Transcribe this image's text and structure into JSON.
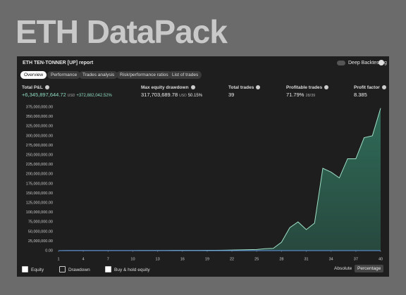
{
  "page_title": "ETH DataPack",
  "report": {
    "title": "ETH TEN-TONNER [UP] report",
    "toggle": "Deep Backtesting"
  },
  "tabs": [
    "Overview",
    "Performance",
    "Trades analysis",
    "Risk/performance ratios",
    "List of trades"
  ],
  "stats": [
    {
      "label": "Total P&L",
      "value": "+6,345,897,644.72",
      "unit": "USD",
      "extra": "+372,882,042.52%"
    },
    {
      "label": "Max equity drawdown",
      "value": "317,703,689.78",
      "unit": "USD",
      "extra": "50.15%"
    },
    {
      "label": "Total trades",
      "value": "39"
    },
    {
      "label": "Profitable trades",
      "value": "71.79%",
      "extra": "28/39"
    },
    {
      "label": "Profit factor",
      "value": "8.385"
    }
  ],
  "legend": {
    "equity": "Equity",
    "drawdown": "Drawdown",
    "buy_hold": "Buy & hold equity",
    "absolute": "Absolute",
    "percentage": "Percentage"
  },
  "chart_data": {
    "type": "area",
    "x": [
      1,
      2,
      3,
      4,
      5,
      6,
      7,
      8,
      9,
      10,
      11,
      12,
      13,
      14,
      15,
      16,
      17,
      18,
      19,
      20,
      21,
      22,
      23,
      24,
      25,
      26,
      27,
      28,
      29,
      30,
      31,
      32,
      33,
      34,
      35,
      36,
      37,
      38,
      39,
      40
    ],
    "series": [
      {
        "name": "Equity",
        "color": "#9fe0c6",
        "fill": "#2f6b58",
        "values": [
          100000,
          120000,
          140000,
          160000,
          180000,
          200000,
          230000,
          260000,
          300000,
          340000,
          380000,
          420000,
          470000,
          520000,
          580000,
          640000,
          700000,
          780000,
          860000,
          950000,
          1200000,
          1500000,
          2000000,
          2500000,
          3000000,
          5000000,
          6000000,
          22000000,
          60000000,
          75000000,
          55000000,
          72000000,
          215000000,
          205000000,
          190000000,
          240000000,
          240000000,
          295000000,
          300000000,
          372000000
        ]
      },
      {
        "name": "Buy & hold equity",
        "color": "#5b8fd6",
        "values": [
          100000,
          100000,
          100000,
          100000,
          100000,
          100000,
          100000,
          100000,
          100000,
          100000,
          100000,
          100000,
          100000,
          100000,
          100000,
          100000,
          100000,
          100000,
          100000,
          100000,
          100000,
          100000,
          100000,
          100000,
          100000,
          100000,
          100000,
          100000,
          100000,
          100000,
          100000,
          100000,
          100000,
          100000,
          100000,
          100000,
          100000,
          100000,
          100000,
          100000
        ]
      }
    ],
    "xlim": [
      1,
      40
    ],
    "xticks": [
      1,
      4,
      7,
      10,
      13,
      16,
      19,
      22,
      25,
      28,
      31,
      34,
      37,
      40
    ],
    "ylim": [
      0,
      375000000
    ],
    "yticks": [
      {
        "value": 0,
        "label": "0.00"
      },
      {
        "value": 25000000,
        "label": "25,000,000.00"
      },
      {
        "value": 50000000,
        "label": "50,000,000.00"
      },
      {
        "value": 75000000,
        "label": "75,000,000.00"
      },
      {
        "value": 100000000,
        "label": "100,000,000.00"
      },
      {
        "value": 125000000,
        "label": "125,000,000.00"
      },
      {
        "value": 150000000,
        "label": "150,000,000.00"
      },
      {
        "value": 175000000,
        "label": "175,000,000.00"
      },
      {
        "value": 200000000,
        "label": "200,000,000.00"
      },
      {
        "value": 225000000,
        "label": "225,000,000.00"
      },
      {
        "value": 250000000,
        "label": "250,000,000.00"
      },
      {
        "value": 275000000,
        "label": "275,000,000.00"
      },
      {
        "value": 300000000,
        "label": "300,000,000.00"
      },
      {
        "value": 325000000,
        "label": "325,000,000.00"
      },
      {
        "value": 350000000,
        "label": "350,000,000.00"
      },
      {
        "value": 375000000,
        "label": "375,000,000.00"
      }
    ],
    "grid": false
  }
}
